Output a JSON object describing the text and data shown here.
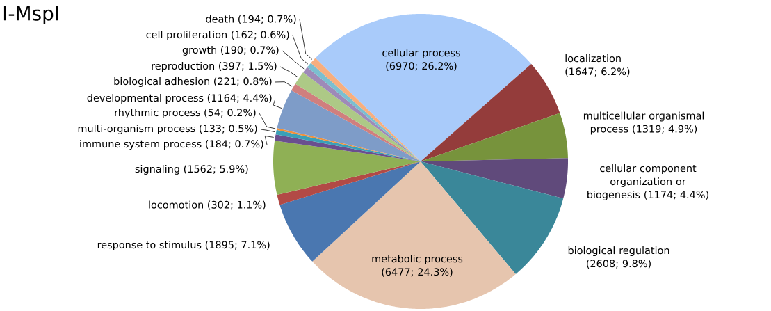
{
  "chart_data": {
    "type": "pie",
    "title": "I-MspI",
    "categories": [
      "cellular process",
      "localization",
      "multicellular organismal process",
      "cellular component organization or biogenesis",
      "biological regulation",
      "metabolic process",
      "response to stimulus",
      "locomotion",
      "signaling",
      "immune system process",
      "multi-organism process",
      "rhythmic process",
      "developmental process",
      "biological adhesion",
      "reproduction",
      "growth",
      "cell proliferation",
      "death"
    ],
    "values": [
      6970,
      1647,
      1319,
      1174,
      2608,
      6477,
      1895,
      302,
      1562,
      184,
      133,
      54,
      1164,
      221,
      397,
      190,
      162,
      194
    ],
    "value_labels": [
      "(6970; 26.2%)",
      "(1647; 6.2%)",
      "(1319; 4.9%)",
      "(1174; 4.4%)",
      "(2608; 9.8%)",
      "(6477; 24.3%)",
      "(1895; 7.1%)",
      "(302; 1.1%)",
      "(1562; 5.9%)",
      "(184; 0.7%)",
      "(133; 0.5%)",
      "(54; 0.2%)",
      "(1164; 4.4%)",
      "(221; 0.8%)",
      "(397; 1.5%)",
      "(190; 0.7%)",
      "(162; 0.6%)",
      "(194; 0.7%)"
    ],
    "colors": [
      "#a9cbfa",
      "#943c3b",
      "#77933c",
      "#604a7b",
      "#3a8799",
      "#e6c5ae",
      "#4a77b0",
      "#b24a46",
      "#8fb055",
      "#6a4f8f",
      "#3aa0b8",
      "#f0913c",
      "#7e9cc8",
      "#d07f7e",
      "#adc986",
      "#9e8ab8",
      "#7bbfd0",
      "#f7ae7e"
    ]
  }
}
